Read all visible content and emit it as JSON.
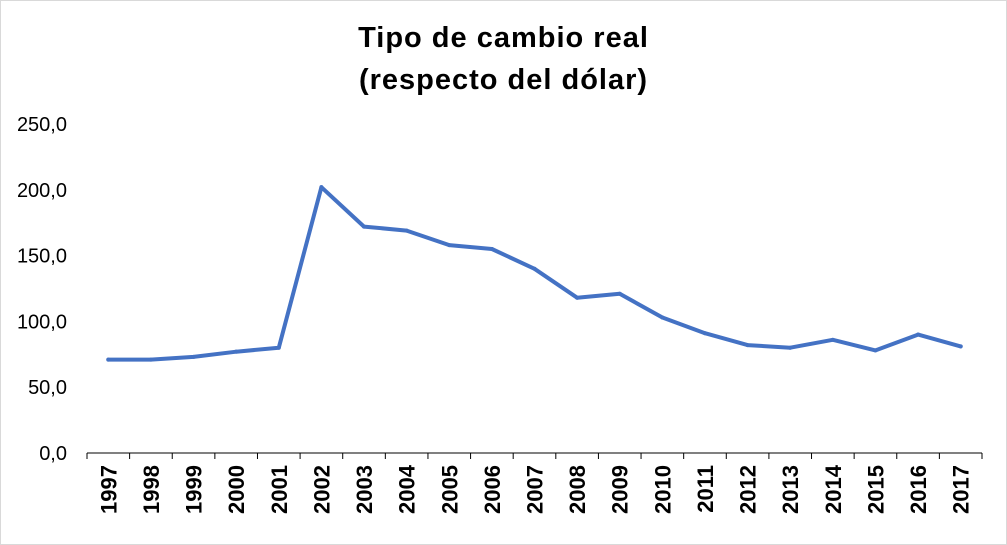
{
  "colors": {
    "series_line": "#4472c4",
    "axis_line": "#000000",
    "text": "#000000"
  },
  "chart_data": {
    "type": "line",
    "title": "Tipo de cambio real",
    "subtitle": "(respecto del dólar)",
    "xlabel": "",
    "ylabel": "",
    "grid": false,
    "legend": "none",
    "ylim": [
      0,
      250
    ],
    "y_ticks": [
      "0,0",
      "50,0",
      "100,0",
      "150,0",
      "200,0",
      "250,0"
    ],
    "categories": [
      "1997",
      "1998",
      "1999",
      "2000",
      "2001",
      "2002",
      "2003",
      "2004",
      "2005",
      "2006",
      "2007",
      "2008",
      "2009",
      "2010",
      "2011",
      "2012",
      "2013",
      "2014",
      "2015",
      "2016",
      "2017"
    ],
    "series": [
      {
        "values": [
          71,
          71,
          73,
          77,
          80,
          202,
          172,
          169,
          158,
          155,
          140,
          118,
          121,
          103,
          91,
          82,
          80,
          86,
          78,
          90,
          81
        ]
      }
    ]
  }
}
